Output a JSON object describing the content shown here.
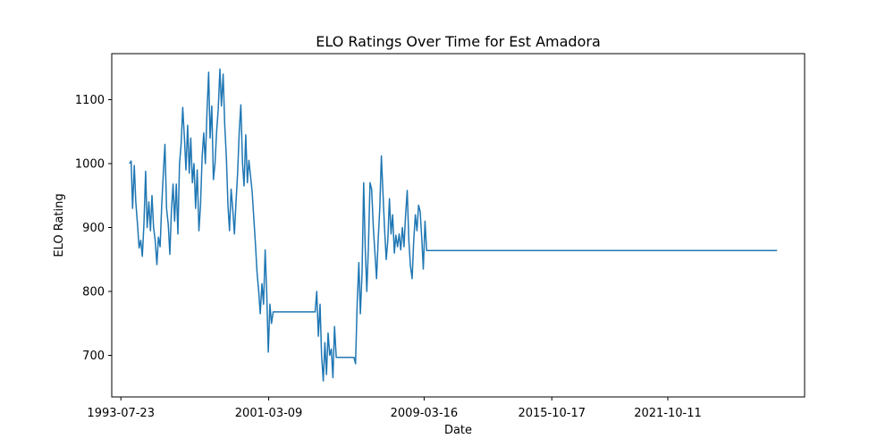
{
  "chart_data": {
    "type": "line",
    "title": "ELO Ratings Over Time for Est Amadora",
    "xlabel": "Date",
    "ylabel": "ELO Rating",
    "x_ticks": [
      "1993-07-23",
      "2001-03-09",
      "2009-03-16",
      "2015-10-17",
      "2021-10-11"
    ],
    "y_ticks": [
      700,
      800,
      900,
      1000,
      1100
    ],
    "xlim": [
      "1993-02-01",
      "2028-11-01"
    ],
    "ylim": [
      635,
      1172
    ],
    "grid": false,
    "series": [
      {
        "color": "#1f77b4",
        "points": [
          [
            "1994-01-01",
            1000
          ],
          [
            "1994-02-01",
            1004
          ],
          [
            "1994-03-01",
            930
          ],
          [
            "1994-04-01",
            997
          ],
          [
            "1994-05-01",
            940
          ],
          [
            "1994-06-01",
            905
          ],
          [
            "1994-07-01",
            868
          ],
          [
            "1994-08-01",
            880
          ],
          [
            "1994-09-01",
            855
          ],
          [
            "1994-10-01",
            905
          ],
          [
            "1994-11-01",
            988
          ],
          [
            "1994-12-01",
            900
          ],
          [
            "1995-01-01",
            940
          ],
          [
            "1995-02-01",
            895
          ],
          [
            "1995-03-01",
            950
          ],
          [
            "1995-04-01",
            900
          ],
          [
            "1995-05-01",
            880
          ],
          [
            "1995-06-01",
            842
          ],
          [
            "1995-07-01",
            885
          ],
          [
            "1995-08-01",
            870
          ],
          [
            "1995-09-01",
            935
          ],
          [
            "1995-10-01",
            985
          ],
          [
            "1995-11-01",
            1030
          ],
          [
            "1995-12-01",
            930
          ],
          [
            "1996-01-01",
            905
          ],
          [
            "1996-02-01",
            858
          ],
          [
            "1996-03-01",
            925
          ],
          [
            "1996-04-01",
            968
          ],
          [
            "1996-05-01",
            910
          ],
          [
            "1996-06-01",
            968
          ],
          [
            "1996-07-01",
            890
          ],
          [
            "1996-08-01",
            1000
          ],
          [
            "1996-09-01",
            1030
          ],
          [
            "1996-10-01",
            1088
          ],
          [
            "1996-11-01",
            1040
          ],
          [
            "1996-12-01",
            990
          ],
          [
            "1997-01-01",
            1060
          ],
          [
            "1997-02-01",
            985
          ],
          [
            "1997-03-01",
            1040
          ],
          [
            "1997-04-01",
            970
          ],
          [
            "1997-05-01",
            1000
          ],
          [
            "1997-06-01",
            930
          ],
          [
            "1997-07-01",
            990
          ],
          [
            "1997-08-01",
            895
          ],
          [
            "1997-09-01",
            935
          ],
          [
            "1997-10-01",
            1010
          ],
          [
            "1997-11-01",
            1048
          ],
          [
            "1997-12-01",
            1000
          ],
          [
            "1998-01-01",
            1080
          ],
          [
            "1998-02-01",
            1143
          ],
          [
            "1998-03-01",
            1040
          ],
          [
            "1998-04-01",
            1090
          ],
          [
            "1998-05-01",
            975
          ],
          [
            "1998-06-01",
            1000
          ],
          [
            "1998-07-01",
            1050
          ],
          [
            "1998-08-01",
            1085
          ],
          [
            "1998-09-01",
            1148
          ],
          [
            "1998-10-01",
            1090
          ],
          [
            "1998-11-01",
            1140
          ],
          [
            "1998-12-01",
            1060
          ],
          [
            "1999-01-01",
            1010
          ],
          [
            "1999-02-01",
            935
          ],
          [
            "1999-03-01",
            895
          ],
          [
            "1999-04-01",
            960
          ],
          [
            "1999-05-01",
            930
          ],
          [
            "1999-06-01",
            890
          ],
          [
            "1999-07-01",
            940
          ],
          [
            "1999-08-01",
            985
          ],
          [
            "1999-09-01",
            1050
          ],
          [
            "1999-10-01",
            1092
          ],
          [
            "1999-11-01",
            1000
          ],
          [
            "1999-12-01",
            965
          ],
          [
            "2000-01-01",
            1045
          ],
          [
            "2000-02-01",
            970
          ],
          [
            "2000-03-01",
            1005
          ],
          [
            "2000-04-01",
            980
          ],
          [
            "2000-05-01",
            955
          ],
          [
            "2000-06-01",
            915
          ],
          [
            "2000-07-01",
            875
          ],
          [
            "2000-08-01",
            830
          ],
          [
            "2000-09-01",
            800
          ],
          [
            "2000-10-01",
            765
          ],
          [
            "2000-11-01",
            812
          ],
          [
            "2000-12-01",
            780
          ],
          [
            "2001-01-01",
            865
          ],
          [
            "2001-02-01",
            795
          ],
          [
            "2001-03-01",
            705
          ],
          [
            "2001-04-01",
            780
          ],
          [
            "2001-05-01",
            750
          ],
          [
            "2001-06-01",
            768
          ],
          [
            "2003-08-01",
            768
          ],
          [
            "2003-09-01",
            800
          ],
          [
            "2003-10-01",
            730
          ],
          [
            "2003-11-01",
            780
          ],
          [
            "2003-12-01",
            700
          ],
          [
            "2004-01-01",
            660
          ],
          [
            "2004-02-01",
            720
          ],
          [
            "2004-03-01",
            670
          ],
          [
            "2004-04-01",
            735
          ],
          [
            "2004-05-01",
            700
          ],
          [
            "2004-06-01",
            710
          ],
          [
            "2004-07-01",
            665
          ],
          [
            "2004-08-01",
            745
          ],
          [
            "2004-09-01",
            697
          ],
          [
            "2005-08-01",
            697
          ],
          [
            "2005-09-01",
            687
          ],
          [
            "2005-10-01",
            780
          ],
          [
            "2005-11-01",
            845
          ],
          [
            "2005-12-01",
            765
          ],
          [
            "2006-01-01",
            830
          ],
          [
            "2006-02-01",
            970
          ],
          [
            "2006-03-01",
            870
          ],
          [
            "2006-04-01",
            800
          ],
          [
            "2006-05-01",
            870
          ],
          [
            "2006-06-01",
            970
          ],
          [
            "2006-07-01",
            960
          ],
          [
            "2006-08-01",
            900
          ],
          [
            "2006-09-01",
            860
          ],
          [
            "2006-10-01",
            820
          ],
          [
            "2006-11-01",
            880
          ],
          [
            "2006-12-01",
            930
          ],
          [
            "2007-01-01",
            1012
          ],
          [
            "2007-02-01",
            950
          ],
          [
            "2007-03-01",
            900
          ],
          [
            "2007-04-01",
            850
          ],
          [
            "2007-05-01",
            880
          ],
          [
            "2007-06-01",
            945
          ],
          [
            "2007-07-01",
            890
          ],
          [
            "2007-08-01",
            920
          ],
          [
            "2007-09-01",
            860
          ],
          [
            "2007-10-01",
            888
          ],
          [
            "2007-11-01",
            870
          ],
          [
            "2007-12-01",
            890
          ],
          [
            "2008-01-01",
            865
          ],
          [
            "2008-02-01",
            900
          ],
          [
            "2008-03-01",
            870
          ],
          [
            "2008-04-01",
            920
          ],
          [
            "2008-05-01",
            958
          ],
          [
            "2008-06-01",
            880
          ],
          [
            "2008-07-01",
            840
          ],
          [
            "2008-08-01",
            820
          ],
          [
            "2008-09-01",
            880
          ],
          [
            "2008-10-01",
            920
          ],
          [
            "2008-11-01",
            895
          ],
          [
            "2008-12-01",
            935
          ],
          [
            "2009-01-01",
            925
          ],
          [
            "2009-02-01",
            880
          ],
          [
            "2009-03-01",
            835
          ],
          [
            "2009-04-01",
            910
          ],
          [
            "2009-05-01",
            864
          ],
          [
            "2027-06-01",
            864
          ]
        ]
      }
    ]
  }
}
